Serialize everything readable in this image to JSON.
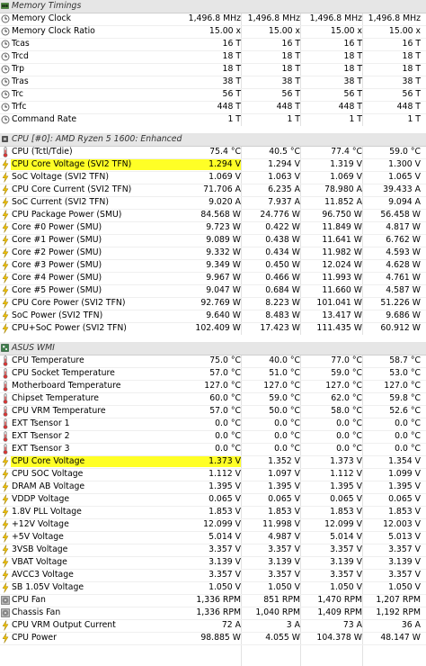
{
  "highlight_color": "#ffff00",
  "sections": [
    {
      "title": "Memory Timings",
      "icon": "memory-icon",
      "rows": [
        {
          "label": "Memory Clock",
          "current": "1,496.8 MHz",
          "min": "1,496.8 MHz",
          "max": "1,496.8 MHz",
          "avg": "1,496.8 MHz",
          "icon": "clock-icon"
        },
        {
          "label": "Memory Clock Ratio",
          "current": "15.00 x",
          "min": "15.00 x",
          "max": "15.00 x",
          "avg": "15.00 x",
          "icon": "clock-icon"
        },
        {
          "label": "Tcas",
          "current": "16 T",
          "min": "16 T",
          "max": "16 T",
          "avg": "16 T",
          "icon": "clock-icon"
        },
        {
          "label": "Trcd",
          "current": "18 T",
          "min": "18 T",
          "max": "18 T",
          "avg": "18 T",
          "icon": "clock-icon"
        },
        {
          "label": "Trp",
          "current": "18 T",
          "min": "18 T",
          "max": "18 T",
          "avg": "18 T",
          "icon": "clock-icon"
        },
        {
          "label": "Tras",
          "current": "38 T",
          "min": "38 T",
          "max": "38 T",
          "avg": "38 T",
          "icon": "clock-icon"
        },
        {
          "label": "Trc",
          "current": "56 T",
          "min": "56 T",
          "max": "56 T",
          "avg": "56 T",
          "icon": "clock-icon"
        },
        {
          "label": "Trfc",
          "current": "448 T",
          "min": "448 T",
          "max": "448 T",
          "avg": "448 T",
          "icon": "clock-icon"
        },
        {
          "label": "Command Rate",
          "current": "1 T",
          "min": "1 T",
          "max": "1 T",
          "avg": "1 T",
          "icon": "clock-icon"
        }
      ]
    },
    {
      "title": "CPU [#0]: AMD Ryzen 5 1600: Enhanced",
      "icon": "cpu-icon",
      "rows": [
        {
          "label": "CPU (Tctl/Tdie)",
          "current": "75.4 °C",
          "min": "40.5 °C",
          "max": "77.4 °C",
          "avg": "59.0 °C",
          "icon": "thermometer-icon"
        },
        {
          "label": "CPU Core Voltage (SVI2 TFN)",
          "current": "1.294 V",
          "min": "1.294 V",
          "max": "1.319 V",
          "avg": "1.300 V",
          "icon": "voltage-icon",
          "highlight": true
        },
        {
          "label": "SoC Voltage (SVI2 TFN)",
          "current": "1.069 V",
          "min": "1.063 V",
          "max": "1.069 V",
          "avg": "1.065 V",
          "icon": "voltage-icon"
        },
        {
          "label": "CPU Core Current (SVI2 TFN)",
          "current": "71.706 A",
          "min": "6.235 A",
          "max": "78.980 A",
          "avg": "39.433 A",
          "icon": "current-icon"
        },
        {
          "label": "SoC Current (SVI2 TFN)",
          "current": "9.020 A",
          "min": "7.937 A",
          "max": "11.852 A",
          "avg": "9.094 A",
          "icon": "current-icon"
        },
        {
          "label": "CPU Package Power (SMU)",
          "current": "84.568 W",
          "min": "24.776 W",
          "max": "96.750 W",
          "avg": "56.458 W",
          "icon": "power-icon"
        },
        {
          "label": "Core #0 Power (SMU)",
          "current": "9.723 W",
          "min": "0.422 W",
          "max": "11.849 W",
          "avg": "4.817 W",
          "icon": "power-icon"
        },
        {
          "label": "Core #1 Power (SMU)",
          "current": "9.089 W",
          "min": "0.438 W",
          "max": "11.641 W",
          "avg": "6.762 W",
          "icon": "power-icon"
        },
        {
          "label": "Core #2 Power (SMU)",
          "current": "9.332 W",
          "min": "0.434 W",
          "max": "11.982 W",
          "avg": "4.593 W",
          "icon": "power-icon"
        },
        {
          "label": "Core #3 Power (SMU)",
          "current": "9.349 W",
          "min": "0.450 W",
          "max": "12.024 W",
          "avg": "4.628 W",
          "icon": "power-icon"
        },
        {
          "label": "Core #4 Power (SMU)",
          "current": "9.967 W",
          "min": "0.466 W",
          "max": "11.993 W",
          "avg": "4.761 W",
          "icon": "power-icon"
        },
        {
          "label": "Core #5 Power (SMU)",
          "current": "9.047 W",
          "min": "0.684 W",
          "max": "11.660 W",
          "avg": "4.587 W",
          "icon": "power-icon"
        },
        {
          "label": "CPU Core Power (SVI2 TFN)",
          "current": "92.769 W",
          "min": "8.223 W",
          "max": "101.041 W",
          "avg": "51.226 W",
          "icon": "power-icon"
        },
        {
          "label": "SoC Power (SVI2 TFN)",
          "current": "9.640 W",
          "min": "8.483 W",
          "max": "13.417 W",
          "avg": "9.686 W",
          "icon": "power-icon"
        },
        {
          "label": "CPU+SoC Power (SVI2 TFN)",
          "current": "102.409 W",
          "min": "17.423 W",
          "max": "111.435 W",
          "avg": "60.912 W",
          "icon": "power-icon"
        }
      ]
    },
    {
      "title": "ASUS WMI",
      "icon": "board-icon",
      "rows": [
        {
          "label": "CPU Temperature",
          "current": "75.0 °C",
          "min": "40.0 °C",
          "max": "77.0 °C",
          "avg": "58.7 °C",
          "icon": "thermometer-icon"
        },
        {
          "label": "CPU Socket Temperature",
          "current": "57.0 °C",
          "min": "51.0 °C",
          "max": "59.0 °C",
          "avg": "53.0 °C",
          "icon": "thermometer-icon"
        },
        {
          "label": "Motherboard Temperature",
          "current": "127.0 °C",
          "min": "127.0 °C",
          "max": "127.0 °C",
          "avg": "127.0 °C",
          "icon": "thermometer-icon"
        },
        {
          "label": "Chipset Temperature",
          "current": "60.0 °C",
          "min": "59.0 °C",
          "max": "62.0 °C",
          "avg": "59.8 °C",
          "icon": "thermometer-icon"
        },
        {
          "label": "CPU VRM Temperature",
          "current": "57.0 °C",
          "min": "50.0 °C",
          "max": "58.0 °C",
          "avg": "52.6 °C",
          "icon": "thermometer-icon"
        },
        {
          "label": "EXT Tsensor 1",
          "current": "0.0 °C",
          "min": "0.0 °C",
          "max": "0.0 °C",
          "avg": "0.0 °C",
          "icon": "thermometer-icon"
        },
        {
          "label": "EXT Tsensor 2",
          "current": "0.0 °C",
          "min": "0.0 °C",
          "max": "0.0 °C",
          "avg": "0.0 °C",
          "icon": "thermometer-icon"
        },
        {
          "label": "EXT Tsensor 3",
          "current": "0.0 °C",
          "min": "0.0 °C",
          "max": "0.0 °C",
          "avg": "0.0 °C",
          "icon": "thermometer-icon"
        },
        {
          "label": "CPU Core Voltage",
          "current": "1.373 V",
          "min": "1.352 V",
          "max": "1.373 V",
          "avg": "1.354 V",
          "icon": "voltage-icon",
          "highlight": true
        },
        {
          "label": "CPU SOC Voltage",
          "current": "1.112 V",
          "min": "1.097 V",
          "max": "1.112 V",
          "avg": "1.099 V",
          "icon": "voltage-icon"
        },
        {
          "label": "DRAM AB Voltage",
          "current": "1.395 V",
          "min": "1.395 V",
          "max": "1.395 V",
          "avg": "1.395 V",
          "icon": "voltage-icon"
        },
        {
          "label": "VDDP Voltage",
          "current": "0.065 V",
          "min": "0.065 V",
          "max": "0.065 V",
          "avg": "0.065 V",
          "icon": "voltage-icon"
        },
        {
          "label": "1.8V PLL Voltage",
          "current": "1.853 V",
          "min": "1.853 V",
          "max": "1.853 V",
          "avg": "1.853 V",
          "icon": "voltage-icon"
        },
        {
          "label": "+12V Voltage",
          "current": "12.099 V",
          "min": "11.998 V",
          "max": "12.099 V",
          "avg": "12.003 V",
          "icon": "voltage-icon"
        },
        {
          "label": "+5V Voltage",
          "current": "5.014 V",
          "min": "4.987 V",
          "max": "5.014 V",
          "avg": "5.013 V",
          "icon": "voltage-icon"
        },
        {
          "label": "3VSB Voltage",
          "current": "3.357 V",
          "min": "3.357 V",
          "max": "3.357 V",
          "avg": "3.357 V",
          "icon": "voltage-icon"
        },
        {
          "label": "VBAT Voltage",
          "current": "3.139 V",
          "min": "3.139 V",
          "max": "3.139 V",
          "avg": "3.139 V",
          "icon": "voltage-icon"
        },
        {
          "label": "AVCC3 Voltage",
          "current": "3.357 V",
          "min": "3.357 V",
          "max": "3.357 V",
          "avg": "3.357 V",
          "icon": "voltage-icon"
        },
        {
          "label": "SB 1.05V Voltage",
          "current": "1.050 V",
          "min": "1.050 V",
          "max": "1.050 V",
          "avg": "1.050 V",
          "icon": "voltage-icon"
        },
        {
          "label": "CPU Fan",
          "current": "1,336 RPM",
          "min": "851 RPM",
          "max": "1,470 RPM",
          "avg": "1,207 RPM",
          "icon": "fan-icon"
        },
        {
          "label": "Chassis Fan",
          "current": "1,336 RPM",
          "min": "1,040 RPM",
          "max": "1,409 RPM",
          "avg": "1,192 RPM",
          "icon": "fan-icon"
        },
        {
          "label": "CPU VRM Output Current",
          "current": "72 A",
          "min": "3 A",
          "max": "73 A",
          "avg": "36 A",
          "icon": "current-icon"
        },
        {
          "label": "CPU Power",
          "current": "98.885 W",
          "min": "4.055 W",
          "max": "104.378 W",
          "avg": "48.147 W",
          "icon": "power-icon"
        }
      ]
    }
  ]
}
